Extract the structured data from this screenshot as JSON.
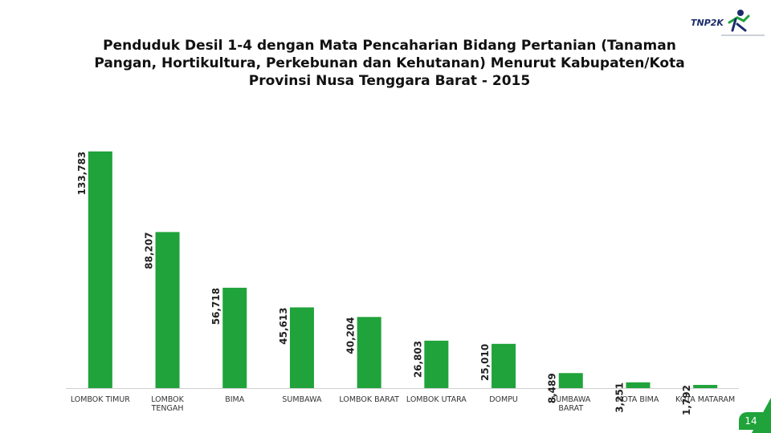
{
  "header": {
    "logo_text": "TNP2K"
  },
  "chart_data": {
    "type": "bar",
    "title_lines": [
      "Penduduk Desil 1-4 dengan Mata Pencaharian Bidang Pertanian (Tanaman",
      "Pangan, Hortikultura, Perkebunan dan Kehutanan) Menurut Kabupaten/Kota",
      "Provinsi Nusa Tenggara Barat - 2015"
    ],
    "categories": [
      [
        "LOMBOK TIMUR"
      ],
      [
        "LOMBOK",
        "TENGAH"
      ],
      [
        "BIMA"
      ],
      [
        "SUMBAWA"
      ],
      [
        "LOMBOK BARAT"
      ],
      [
        "LOMBOK UTARA"
      ],
      [
        "DOMPU"
      ],
      [
        "SUMBAWA",
        "BARAT"
      ],
      [
        "KOTA BIMA"
      ],
      [
        "KOTA MATARAM"
      ]
    ],
    "values": [
      133783,
      88207,
      56718,
      45613,
      40204,
      26803,
      25010,
      8489,
      3251,
      1792
    ],
    "data_labels": [
      "133,783",
      "88,207",
      "56,718",
      "45,613",
      "40,204",
      "26,803",
      "25,010",
      "8,489",
      "3,251",
      "1,792"
    ],
    "ylim": [
      0,
      160000
    ],
    "bar_color": "#1fa33a",
    "grid": false,
    "legend": "none"
  },
  "footer": {
    "page_number": "14"
  }
}
